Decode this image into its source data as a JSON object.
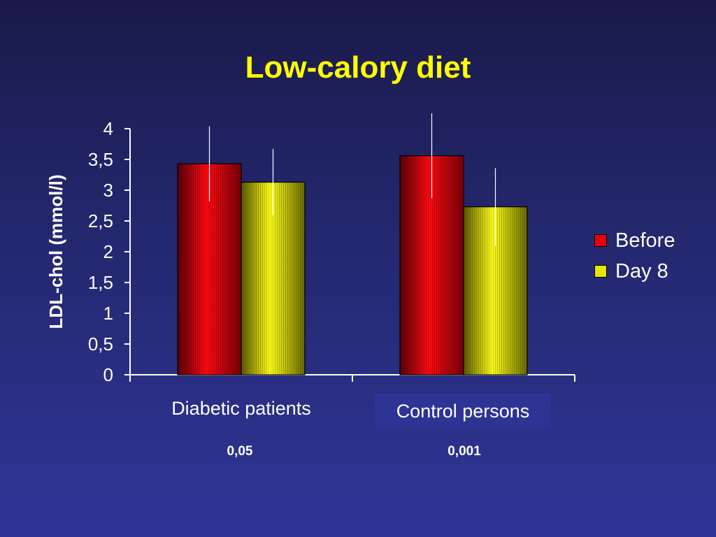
{
  "title": "Low-calory diet",
  "chart_data": {
    "type": "bar",
    "ylabel": "LDL-chol (mmol/l)",
    "xlabel": "",
    "categories": [
      "Diabetic patients",
      "Control persons"
    ],
    "ylim": [
      0,
      4
    ],
    "yticks": [
      "0",
      "0,5",
      "1",
      "1,5",
      "2",
      "2,5",
      "3",
      "3,5",
      "4"
    ],
    "series": [
      {
        "name": "Before",
        "values": [
          3.43,
          3.56
        ],
        "error": [
          0.61,
          0.69
        ],
        "color": "#e8000a"
      },
      {
        "name": "Day 8",
        "values": [
          3.13,
          2.73
        ],
        "error": [
          0.54,
          0.63
        ],
        "color": "#e6e600"
      }
    ],
    "annotations": [
      "0,05",
      "0,001"
    ],
    "legend": "right"
  }
}
